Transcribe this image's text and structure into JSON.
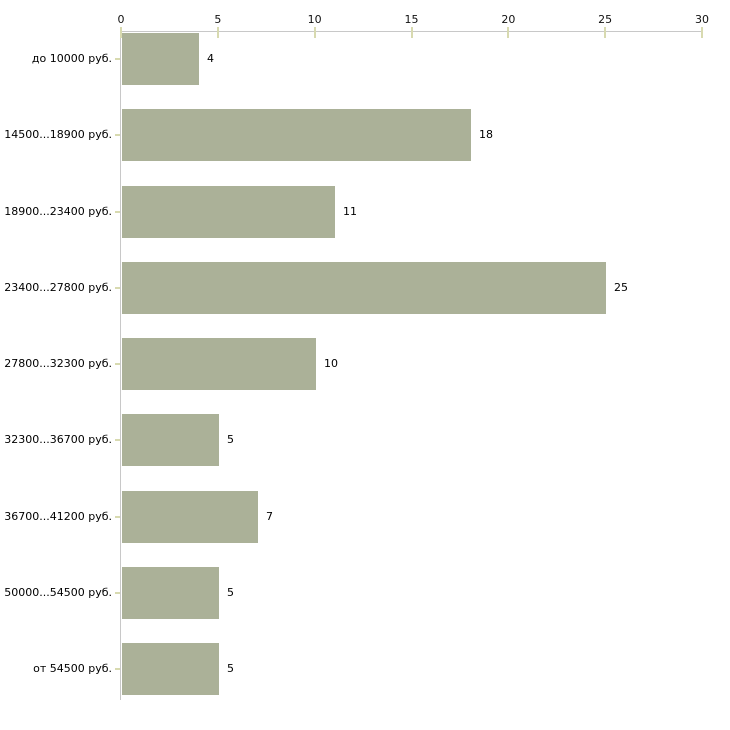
{
  "chart_data": {
    "type": "bar",
    "orientation": "horizontal",
    "title": "",
    "xlabel": "",
    "ylabel": "",
    "categories": [
      "до 10000 руб.",
      "14500...18900 руб.",
      "18900...23400 руб.",
      "23400...27800 руб.",
      "27800...32300 руб.",
      "32300...36700 руб.",
      "36700...41200 руб.",
      "50000...54500 руб.",
      "от 54500 руб."
    ],
    "values": [
      4,
      18,
      11,
      25,
      10,
      5,
      7,
      5,
      5
    ],
    "xlim": [
      0,
      30
    ],
    "xticks": [
      0,
      5,
      10,
      15,
      20,
      25,
      30
    ],
    "grid": false,
    "legend": "none",
    "value_labels_shown": true,
    "colors": {
      "bar": "#abb198",
      "axis_line": "#c8c8c8",
      "tick_mark": "#d8dab0",
      "text": "#000000",
      "background": "#ffffff"
    }
  }
}
